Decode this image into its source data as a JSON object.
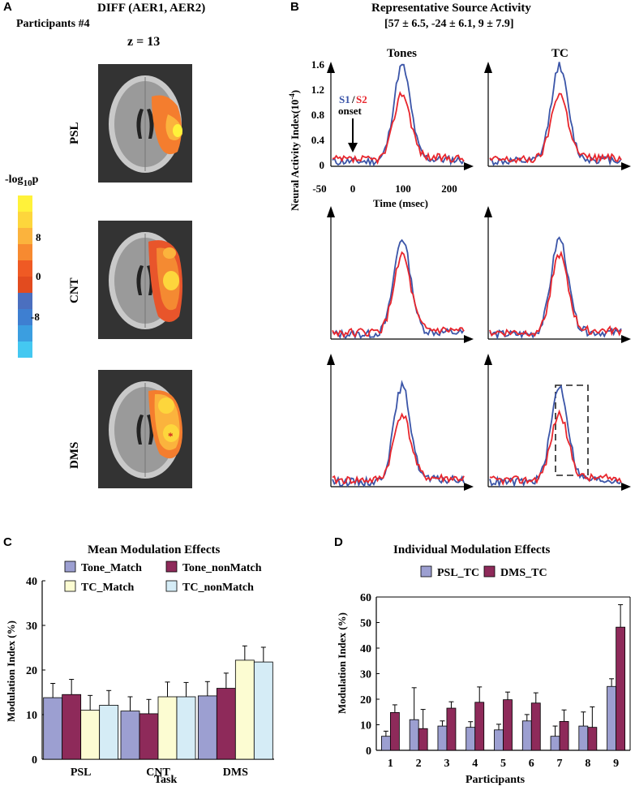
{
  "panel_labels": {
    "a": "A",
    "b": "B",
    "c": "C",
    "d": "D"
  },
  "panel_a": {
    "title": "DIFF (AER1, AER2)",
    "participant": "Participants #4",
    "slice": "z = 13",
    "rows": [
      "PSL",
      "CNT",
      "DMS"
    ],
    "colorbar": {
      "label_prefix": "-log",
      "label_sub": "10",
      "label_suffix": "p",
      "ticks": [
        "8",
        "0",
        "-8"
      ],
      "colors": [
        "#fff23a",
        "#fdd63c",
        "#fbb33d",
        "#f78a30",
        "#ef5a24",
        "#e24b1f",
        "#4b6fbf",
        "#3e7fd1",
        "#3b9ee0",
        "#44c8f1"
      ]
    }
  },
  "panel_b": {
    "title": "Representative Source Activity",
    "coords": "[57 ± 6.5, -24 ± 6.1, 9 ± 7.9]",
    "col_titles": [
      "Tones",
      "TC"
    ],
    "ylabel": "Neural Activity Index(10",
    "ylabel_exp": "-4",
    "ylabel_close": ")",
    "xlabel": "Time (msec)",
    "yticks": [
      "1.6",
      "1.2",
      "0.8",
      "0.4",
      "0"
    ],
    "xticks": [
      "-50",
      "0",
      "100",
      "200"
    ],
    "legend_s1": "S1",
    "legend_sep": "/",
    "legend_s2": "S2",
    "onset": "onset",
    "colors": {
      "s1": "#3b55a8",
      "s2": "#e8262d"
    }
  },
  "chart_data": [
    {
      "type": "bar",
      "title": "Mean Modulation Effects",
      "xlabel": "Task",
      "ylabel": "Modulation Index (%)",
      "ylim": [
        0,
        40
      ],
      "yticks": [
        "0",
        "10",
        "20",
        "30",
        "40"
      ],
      "categories": [
        "PSL",
        "CNT",
        "DMS"
      ],
      "series": [
        {
          "name": "Tone_Match",
          "color": "#9c9fd1",
          "values": [
            13.8,
            10.8,
            14.2
          ],
          "errors": [
            3.2,
            3.2,
            3.2
          ]
        },
        {
          "name": "Tone_nonMatch",
          "color": "#8e2a5a",
          "values": [
            14.5,
            10.2,
            15.9
          ],
          "errors": [
            3.4,
            3.2,
            3.4
          ]
        },
        {
          "name": "TC_Match",
          "color": "#fcfcd2",
          "values": [
            11.0,
            14.0,
            22.2
          ],
          "errors": [
            3.3,
            3.3,
            3.2
          ]
        },
        {
          "name": "TC_nonMatch",
          "color": "#d5ecf6",
          "values": [
            12.1,
            14.0,
            21.8
          ],
          "errors": [
            3.3,
            3.2,
            3.3
          ]
        }
      ]
    },
    {
      "type": "bar",
      "title": "Individual Modulation Effects",
      "xlabel": "Participants",
      "ylabel": "Modulation Index (%)",
      "ylim": [
        0,
        60
      ],
      "yticks": [
        "0",
        "10",
        "20",
        "30",
        "40",
        "50",
        "60"
      ],
      "categories": [
        "1",
        "2",
        "3",
        "4",
        "5",
        "6",
        "7",
        "8",
        "9"
      ],
      "series": [
        {
          "name": "PSL_TC",
          "color": "#9c9fd1",
          "values": [
            5.5,
            12,
            9.5,
            9,
            8,
            11.5,
            5.5,
            9.5,
            25
          ],
          "errors": [
            2,
            12.5,
            2,
            2.2,
            2.2,
            2.5,
            4,
            5.5,
            3
          ]
        },
        {
          "name": "DMS_TC",
          "color": "#8e2a5a",
          "values": [
            14.8,
            8.5,
            16.5,
            18.8,
            19.8,
            18.5,
            11.3,
            9,
            48.2
          ],
          "errors": [
            3,
            7.5,
            2.5,
            6,
            3,
            4,
            4.5,
            8,
            8.8
          ]
        }
      ]
    }
  ]
}
